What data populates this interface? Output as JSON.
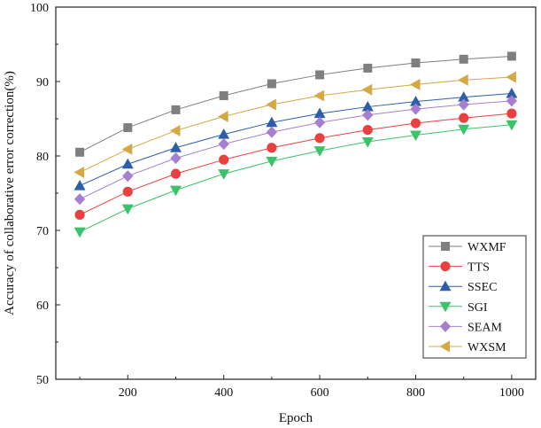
{
  "chart_data": {
    "type": "line",
    "title": "",
    "xlabel": "Epoch",
    "ylabel": "Accuracy of collaborative error correction(%)",
    "xlim": [
      50,
      1050
    ],
    "ylim": [
      50,
      100
    ],
    "xticks": [
      200,
      400,
      600,
      800,
      1000
    ],
    "yticks": [
      50,
      60,
      70,
      80,
      90,
      100
    ],
    "grid": false,
    "legend_position": "bottom-right",
    "x": [
      100,
      200,
      300,
      400,
      500,
      600,
      700,
      800,
      900,
      1000
    ],
    "series": [
      {
        "name": "WXMF",
        "marker": "square",
        "color": "#7f7f7f",
        "values": [
          80.5,
          83.8,
          86.2,
          88.1,
          89.7,
          90.9,
          91.8,
          92.5,
          93.0,
          93.4
        ]
      },
      {
        "name": "TTS",
        "marker": "circle",
        "color": "#e8413f",
        "values": [
          72.1,
          75.2,
          77.6,
          79.5,
          81.1,
          82.4,
          83.5,
          84.4,
          85.1,
          85.7
        ]
      },
      {
        "name": "SSEC",
        "marker": "triangle-up",
        "color": "#2d5fa8",
        "values": [
          76.0,
          78.9,
          81.1,
          82.9,
          84.5,
          85.7,
          86.6,
          87.3,
          87.9,
          88.4
        ]
      },
      {
        "name": "SGI",
        "marker": "triangle-down",
        "color": "#3cc26a",
        "values": [
          69.8,
          72.9,
          75.4,
          77.6,
          79.3,
          80.7,
          81.9,
          82.8,
          83.6,
          84.2
        ]
      },
      {
        "name": "SEAM",
        "marker": "diamond",
        "color": "#a77fd0",
        "values": [
          74.2,
          77.3,
          79.7,
          81.6,
          83.2,
          84.5,
          85.5,
          86.3,
          86.9,
          87.4
        ]
      },
      {
        "name": "WXSM",
        "marker": "triangle-left",
        "color": "#d4a843",
        "values": [
          77.8,
          80.9,
          83.4,
          85.3,
          86.9,
          88.1,
          88.9,
          89.6,
          90.2,
          90.6
        ]
      }
    ]
  }
}
